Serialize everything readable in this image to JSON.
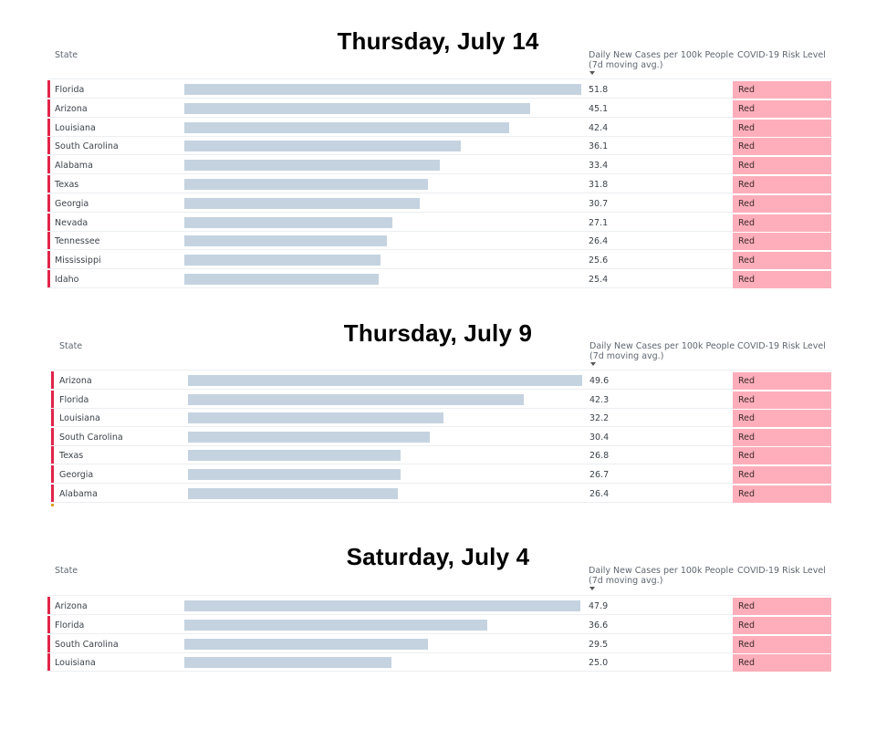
{
  "chart_data": [
    {
      "type": "bar",
      "orientation": "horizontal",
      "title": "Thursday, July 14",
      "headers": {
        "state": "State",
        "cases_line1": "Daily New Cases per 100k People",
        "cases_line2": "(7d moving avg.)",
        "risk": "COVID-19 Risk Level"
      },
      "categories": [
        "Florida",
        "Arizona",
        "Louisiana",
        "South Carolina",
        "Alabama",
        "Texas",
        "Georgia",
        "Nevada",
        "Tennessee",
        "Mississippi",
        "Idaho"
      ],
      "values": [
        51.8,
        45.1,
        42.4,
        36.1,
        33.4,
        31.8,
        30.7,
        27.1,
        26.4,
        25.6,
        25.4
      ],
      "value_labels": [
        "51.8",
        "45.1",
        "42.4",
        "36.1",
        "33.4",
        "31.8",
        "30.7",
        "27.1",
        "26.4",
        "25.6",
        "25.4"
      ],
      "risk_levels": [
        "Red",
        "Red",
        "Red",
        "Red",
        "Red",
        "Red",
        "Red",
        "Red",
        "Red",
        "Red",
        "Red"
      ],
      "xlim": [
        0,
        51.8
      ]
    },
    {
      "type": "bar",
      "orientation": "horizontal",
      "title": "Thursday, July 9",
      "headers": {
        "state": "State",
        "cases_line1": "Daily New Cases per 100k People",
        "cases_line2": "(7d moving avg.)",
        "risk": "COVID-19 Risk Level"
      },
      "categories": [
        "Arizona",
        "Florida",
        "Louisiana",
        "South Carolina",
        "Texas",
        "Georgia",
        "Alabama"
      ],
      "values": [
        49.6,
        42.3,
        32.2,
        30.4,
        26.8,
        26.7,
        26.4
      ],
      "value_labels": [
        "49.6",
        "42.3",
        "32.2",
        "30.4",
        "26.8",
        "26.7",
        "26.4"
      ],
      "risk_levels": [
        "Red",
        "Red",
        "Red",
        "Red",
        "Red",
        "Red",
        "Red"
      ],
      "xlim": [
        0,
        49.6
      ]
    },
    {
      "type": "bar",
      "orientation": "horizontal",
      "title": "Saturday, July 4",
      "headers": {
        "state": "State",
        "cases_line1": "Daily New Cases per 100k People",
        "cases_line2": "(7d moving avg.)",
        "risk": "COVID-19 Risk Level"
      },
      "categories": [
        "Arizona",
        "Florida",
        "South Carolina",
        "Louisiana"
      ],
      "values": [
        47.9,
        36.6,
        29.5,
        25.0
      ],
      "value_labels": [
        "47.9",
        "36.6",
        "29.5",
        "25.0"
      ],
      "risk_levels": [
        "Red",
        "Red",
        "Red",
        "Red"
      ],
      "xlim": [
        0,
        47.9
      ]
    }
  ],
  "colors": {
    "bar": "#c5d3e0",
    "risk_red": "#fdaeba",
    "accent": "#e0254a"
  }
}
